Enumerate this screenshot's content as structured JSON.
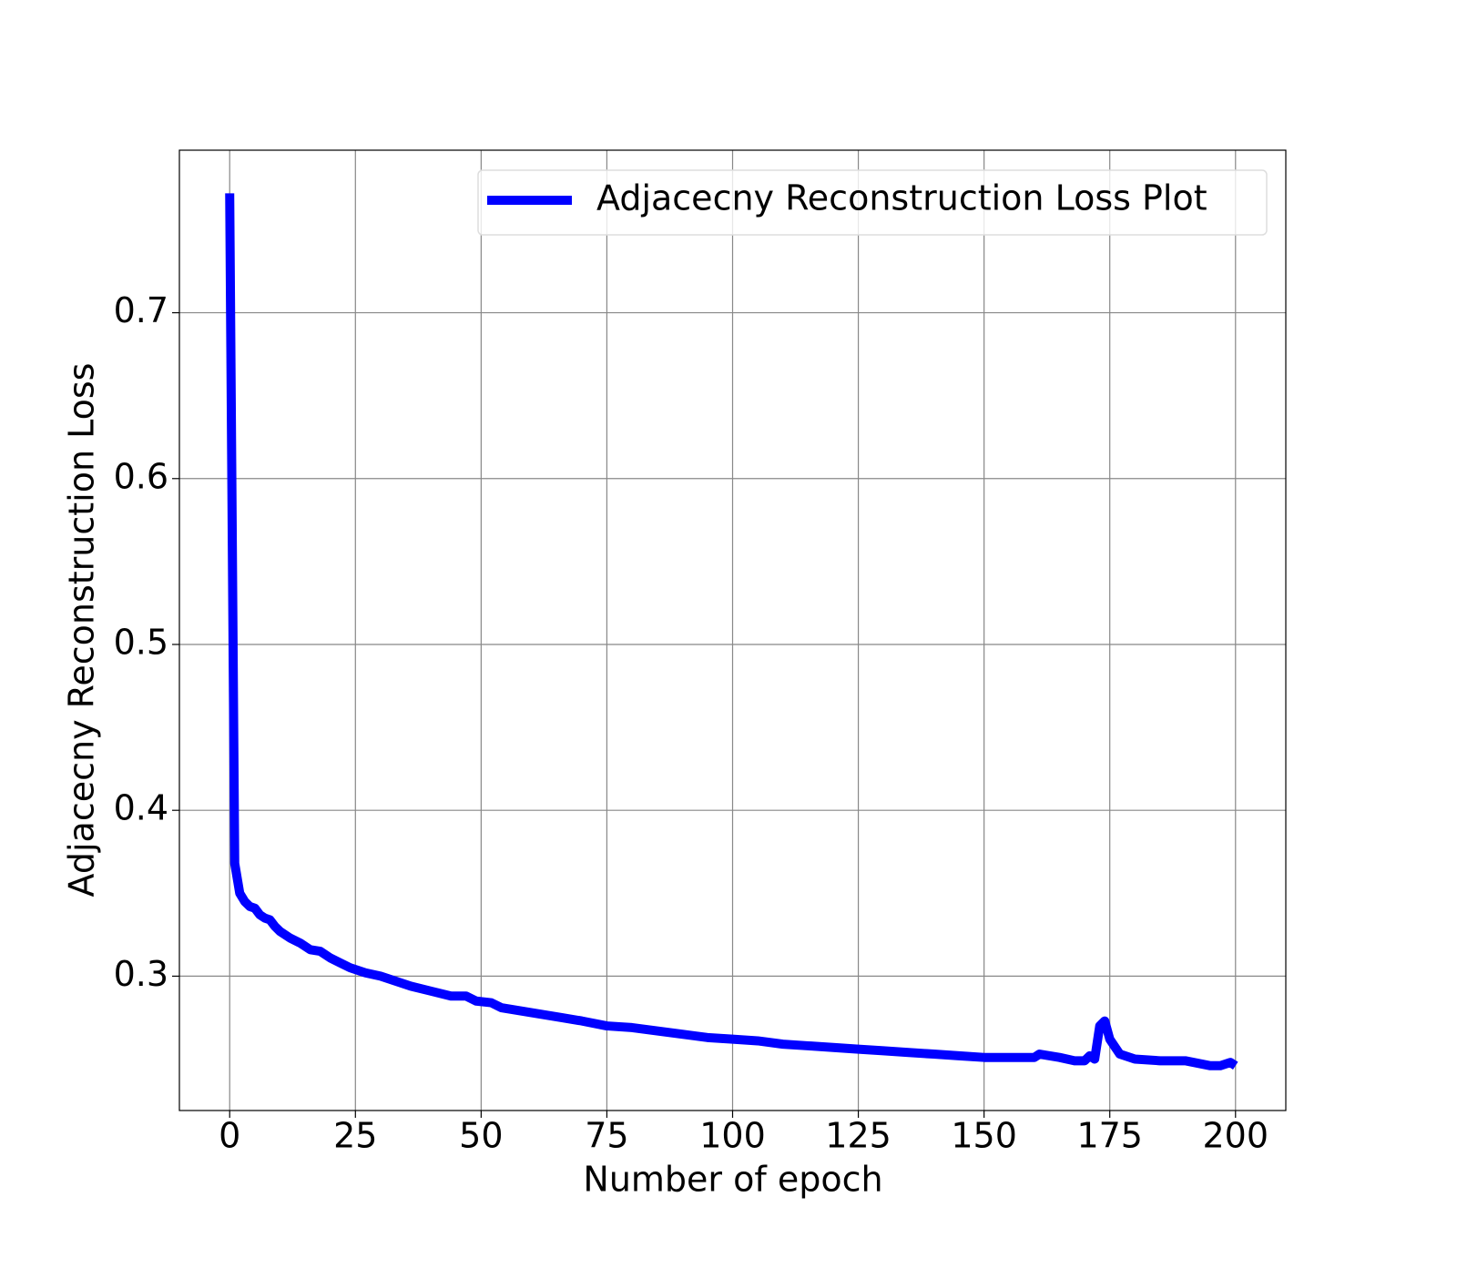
{
  "chart_data": {
    "type": "line",
    "xlabel": "Number of epoch",
    "ylabel": "Adjacecny Reconstruction Loss",
    "x": [
      0,
      1,
      2,
      3,
      4,
      5,
      6,
      7,
      8,
      9,
      10,
      12,
      14,
      16,
      18,
      20,
      22,
      24,
      27,
      30,
      33,
      36,
      40,
      44,
      47,
      49,
      52,
      54,
      58,
      62,
      66,
      70,
      75,
      80,
      85,
      90,
      95,
      100,
      105,
      110,
      115,
      120,
      125,
      130,
      135,
      140,
      145,
      150,
      155,
      160,
      161,
      165,
      168,
      170,
      171,
      172,
      173,
      174,
      175,
      177,
      180,
      185,
      190,
      195,
      197,
      199,
      200
    ],
    "series": [
      {
        "name": "Adjacecny Reconstruction Loss Plot",
        "color": "#0000ff",
        "values": [
          0.772,
          0.368,
          0.35,
          0.345,
          0.342,
          0.341,
          0.337,
          0.335,
          0.334,
          0.33,
          0.327,
          0.323,
          0.32,
          0.316,
          0.315,
          0.311,
          0.308,
          0.305,
          0.302,
          0.3,
          0.297,
          0.294,
          0.291,
          0.288,
          0.288,
          0.285,
          0.284,
          0.281,
          0.279,
          0.277,
          0.275,
          0.273,
          0.27,
          0.269,
          0.267,
          0.265,
          0.263,
          0.262,
          0.261,
          0.259,
          0.258,
          0.257,
          0.256,
          0.255,
          0.254,
          0.253,
          0.252,
          0.251,
          0.251,
          0.251,
          0.253,
          0.251,
          0.249,
          0.249,
          0.252,
          0.25,
          0.27,
          0.273,
          0.262,
          0.253,
          0.25,
          0.249,
          0.249,
          0.246,
          0.246,
          0.248,
          0.246
        ]
      }
    ],
    "xlim": [
      -10,
      210
    ],
    "xticks": [
      0,
      25,
      50,
      75,
      100,
      125,
      150,
      175,
      200
    ],
    "ylim": [
      0.219,
      0.798
    ],
    "yticks": [
      0.3,
      0.4,
      0.5,
      0.6,
      0.7
    ],
    "grid": true,
    "legend": "upper right"
  }
}
